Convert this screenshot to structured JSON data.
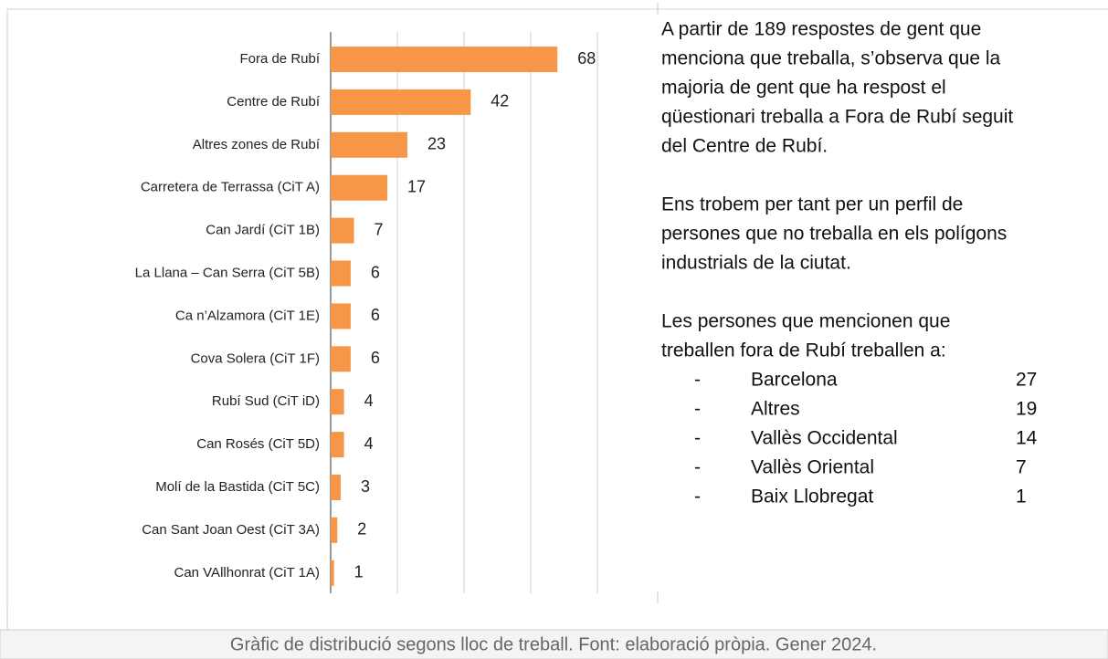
{
  "chart_data": {
    "type": "bar",
    "orientation": "horizontal",
    "categories": [
      "Fora de Rubí",
      "Centre de Rubí",
      "Altres zones de Rubí",
      "Carretera de Terrassa (CiT A)",
      "Can Jardí (CiT 1B)",
      "La Llana – Can Serra (CiT 5B)",
      "Ca n’Alzamora (CiT 1E)",
      "Cova Solera (CiT 1F)",
      "Rubí Sud (CiT iD)",
      "Can Rosés (CiT 5D)",
      "Molí de la Bastida (CiT 5C)",
      "Can Sant Joan Oest (CiT  3A)",
      "Can VAllhonrat (CiT 1A)"
    ],
    "values": [
      68,
      42,
      23,
      17,
      7,
      6,
      6,
      6,
      4,
      4,
      3,
      2,
      1
    ],
    "color": "#f79646",
    "xlim": [
      0,
      80
    ],
    "xticks": [
      0,
      20,
      40,
      60,
      80
    ],
    "grid": true
  },
  "description": {
    "paragraphs": [
      [
        "A partir de 189 respostes de gent que",
        "menciona que treballa, s’observa que la",
        "majoria de gent que ha respost el",
        "qüestionari treballa a Fora de Rubí seguit",
        "del Centre de Rubí."
      ],
      [
        "Ens trobem per tant per un perfil de",
        "persones que no treballa en els polígons",
        "industrials de la ciutat."
      ],
      [
        "Les persones que mencionen que",
        "treballen fora de Rubí treballen a:"
      ]
    ],
    "list": [
      {
        "bullet": "-",
        "name": "Barcelona",
        "count": 27
      },
      {
        "bullet": "-",
        "name": "Altres",
        "count": 19
      },
      {
        "bullet": "-",
        "name": "Vallès Occidental",
        "count": 14
      },
      {
        "bullet": "-",
        "name": "Vallès Oriental",
        "count": 7
      },
      {
        "bullet": "-",
        "name": "Baix Llobregat",
        "count": 1
      }
    ]
  },
  "caption": "Gràfic de distribució segons lloc de treball. Font: elaboració pròpia. Gener 2024."
}
